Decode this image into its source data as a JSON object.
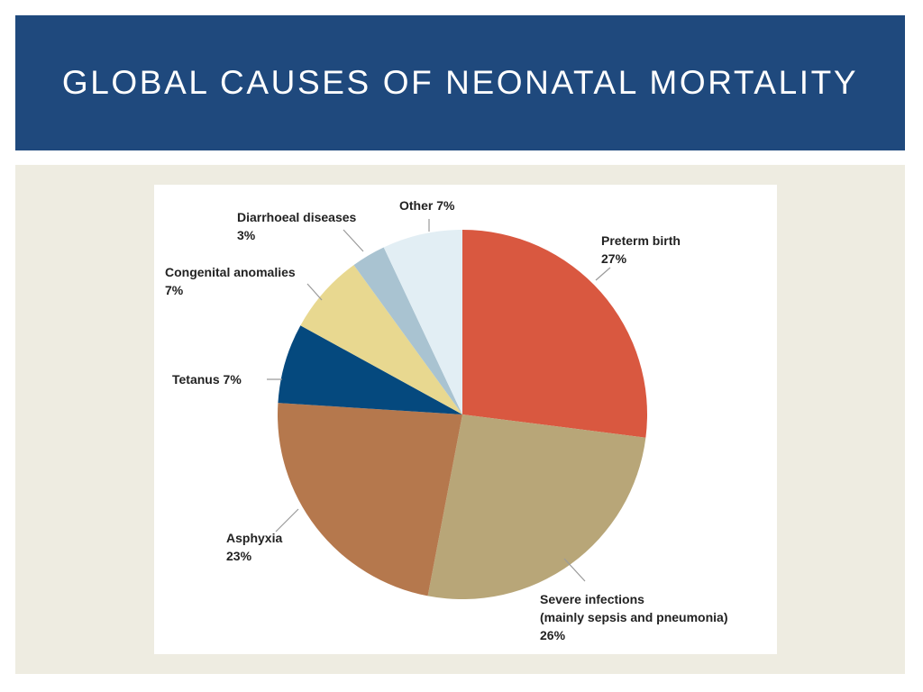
{
  "slide": {
    "title": "GLOBAL CAUSES OF NEONATAL MORTALITY"
  },
  "chart_data": {
    "type": "pie",
    "title": "",
    "start_angle_deg": 0,
    "direction": "clockwise",
    "slices": [
      {
        "name": "Preterm birth",
        "value": 27,
        "label_lines": [
          "Preterm birth",
          "27%"
        ],
        "color": "#d95840"
      },
      {
        "name": "Severe infections (mainly sepsis and pneumonia)",
        "value": 26,
        "label_lines": [
          "Severe infections",
          "(mainly sepsis and pneumonia)",
          "26%"
        ],
        "color": "#b8a678"
      },
      {
        "name": "Asphyxia",
        "value": 23,
        "label_lines": [
          "Asphyxia",
          "23%"
        ],
        "color": "#b5784d"
      },
      {
        "name": "Tetanus",
        "value": 7,
        "label_lines": [
          "Tetanus 7%"
        ],
        "color": "#05497e"
      },
      {
        "name": "Congenital anomalies",
        "value": 7,
        "label_lines": [
          "Congenital anomalies",
          "7%"
        ],
        "color": "#e8d890"
      },
      {
        "name": "Diarrhoeal diseases",
        "value": 3,
        "label_lines": [
          "Diarrhoeal diseases",
          "3%"
        ],
        "color": "#a9c3d1"
      },
      {
        "name": "Other",
        "value": 7,
        "label_lines": [
          "Other 7%"
        ],
        "color": "#e2eef4"
      }
    ]
  }
}
